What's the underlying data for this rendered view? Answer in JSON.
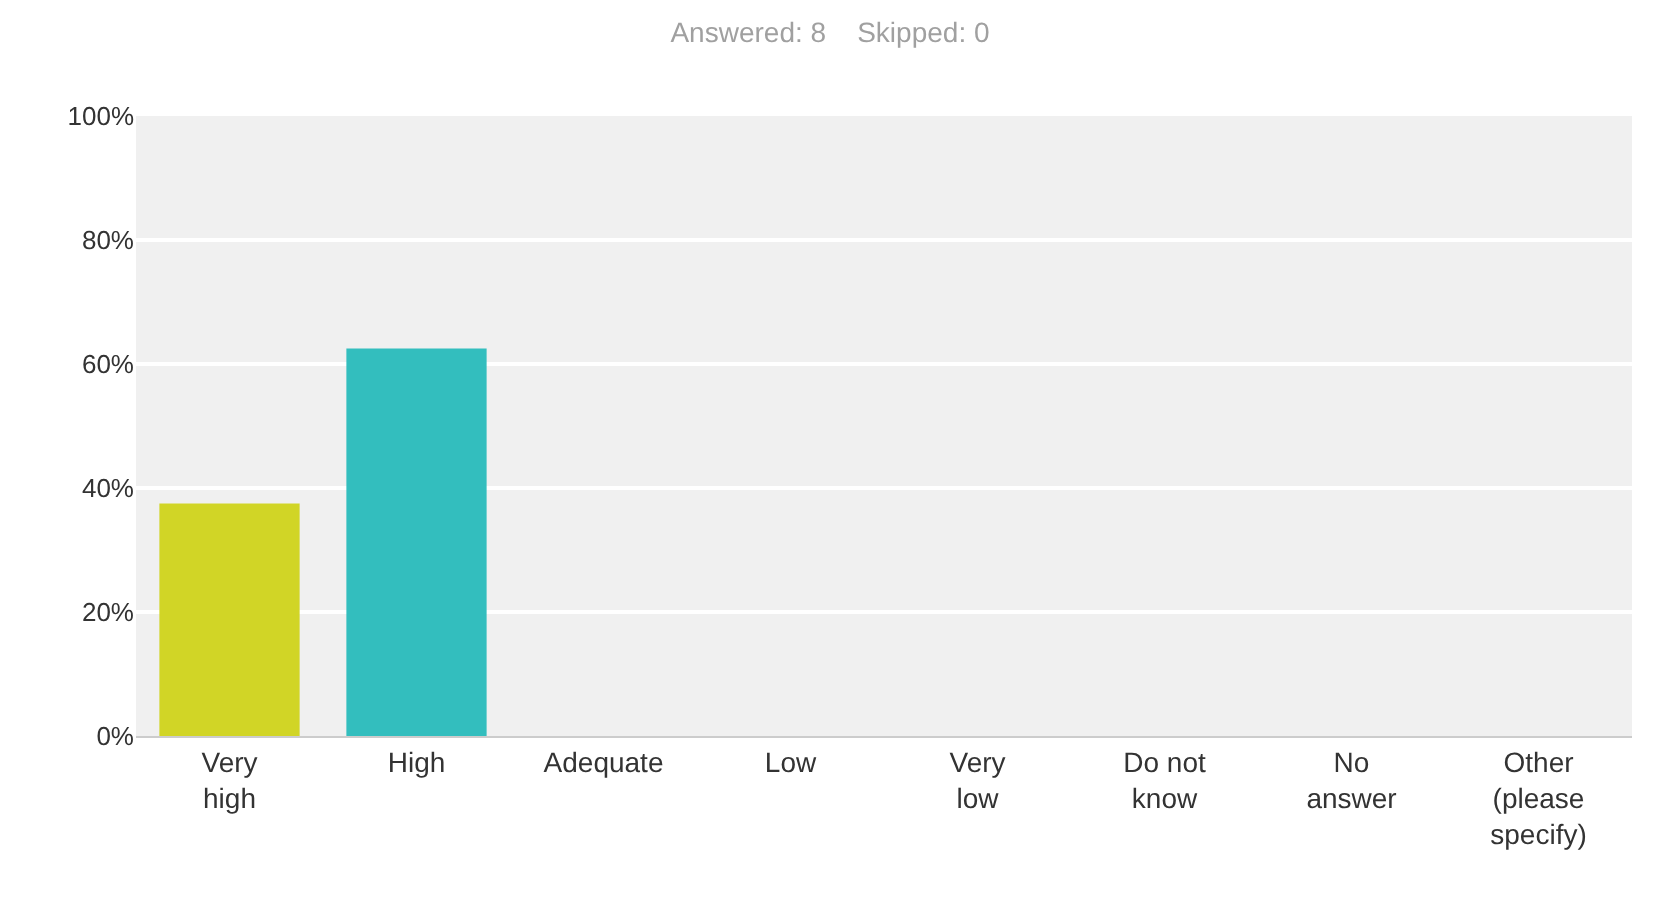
{
  "chart_data": {
    "type": "bar",
    "title": "Answered: 8    Skipped: 0",
    "categories": [
      "Very\nhigh",
      "High",
      "Adequate",
      "Low",
      "Very\nlow",
      "Do not\nknow",
      "No\nanswer",
      "Other\n(please\nspecify)"
    ],
    "values": [
      37.5,
      62.5,
      0,
      0,
      0,
      0,
      0,
      0
    ],
    "colors": [
      "#d1d526",
      "#33bebe",
      "#d1d526",
      "#d1d526",
      "#d1d526",
      "#d1d526",
      "#d1d526",
      "#d1d526"
    ],
    "ylim": [
      0,
      100
    ],
    "yticks": [
      {
        "value": 0,
        "label": "0%"
      },
      {
        "value": 20,
        "label": "20%"
      },
      {
        "value": 40,
        "label": "40%"
      },
      {
        "value": 60,
        "label": "60%"
      },
      {
        "value": 80,
        "label": "80%"
      },
      {
        "value": 100,
        "label": "100%"
      }
    ],
    "grid": "y"
  }
}
